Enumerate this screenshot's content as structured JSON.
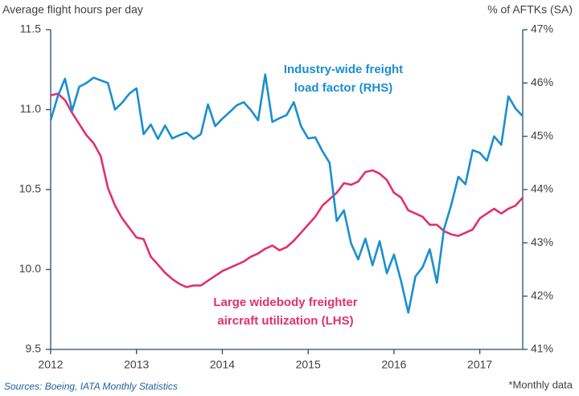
{
  "chart_data": {
    "type": "line",
    "ylabel": "Average flight hours per day",
    "y2label": "% of AFTKs (SA)",
    "source": "Sources: Boeing, IATA Monthly Statistics",
    "note": "*Monthly data",
    "annotations": [
      {
        "lines": [
          "Industry-wide freight",
          "load factor (RHS)"
        ],
        "color": "#1a8fd0"
      },
      {
        "lines": [
          "Large widebody freighter",
          "aircraft utilization (LHS)"
        ],
        "color": "#e0306f"
      }
    ],
    "x": [
      2012,
      2012.083,
      2012.167,
      2012.25,
      2012.333,
      2012.417,
      2012.5,
      2012.583,
      2012.667,
      2012.75,
      2012.833,
      2012.917,
      2013,
      2013.083,
      2013.167,
      2013.25,
      2013.333,
      2013.417,
      2013.5,
      2013.583,
      2013.667,
      2013.75,
      2013.833,
      2013.917,
      2014,
      2014.083,
      2014.167,
      2014.25,
      2014.333,
      2014.417,
      2014.5,
      2014.583,
      2014.667,
      2014.75,
      2014.833,
      2014.917,
      2015,
      2015.083,
      2015.167,
      2015.25,
      2015.333,
      2015.417,
      2015.5,
      2015.583,
      2015.667,
      2015.75,
      2015.833,
      2015.917,
      2016,
      2016.083,
      2016.167,
      2016.25,
      2016.333,
      2016.417,
      2016.5,
      2016.583,
      2016.667,
      2016.75,
      2016.833,
      2016.917,
      2017,
      2017.083,
      2017.167,
      2017.25,
      2017.333,
      2017.417,
      2017.5
    ],
    "series": [
      {
        "color": "#e0306f",
        "axis": "y",
        "values": [
          11.09,
          11.1,
          11.06,
          10.98,
          10.91,
          10.84,
          10.79,
          10.71,
          10.51,
          10.4,
          10.32,
          10.26,
          10.2,
          10.19,
          10.08,
          10.03,
          9.98,
          9.94,
          9.91,
          9.89,
          9.9,
          9.9,
          9.93,
          9.96,
          9.99,
          10.01,
          10.03,
          10.05,
          10.08,
          10.1,
          10.13,
          10.15,
          10.12,
          10.14,
          10.18,
          10.23,
          10.28,
          10.33,
          10.4,
          10.44,
          10.48,
          10.54,
          10.53,
          10.55,
          10.61,
          10.62,
          10.6,
          10.56,
          10.48,
          10.45,
          10.37,
          10.35,
          10.33,
          10.28,
          10.28,
          10.24,
          10.22,
          10.21,
          10.23,
          10.25,
          10.32,
          10.35,
          10.38,
          10.35,
          10.38,
          10.4,
          10.45
        ]
      },
      {
        "color": "#1a8fd0",
        "axis": "y2",
        "values": [
          45.3,
          45.75,
          46.08,
          45.48,
          45.93,
          46.0,
          46.1,
          46.05,
          46.0,
          45.5,
          45.63,
          45.8,
          45.9,
          45.04,
          45.22,
          44.95,
          45.2,
          44.96,
          45.02,
          45.07,
          44.95,
          45.04,
          45.6,
          45.19,
          45.33,
          45.45,
          45.58,
          45.64,
          45.49,
          45.3,
          46.16,
          45.27,
          45.34,
          45.4,
          45.64,
          45.19,
          44.96,
          44.98,
          44.72,
          44.5,
          43.41,
          43.61,
          42.99,
          42.69,
          43.08,
          42.58,
          43.03,
          42.43,
          42.78,
          42.28,
          41.69,
          42.37,
          42.54,
          42.88,
          42.25,
          43.26,
          43.71,
          44.24,
          44.1,
          44.74,
          44.69,
          44.54,
          45.0,
          44.84,
          45.75,
          45.52,
          45.38
        ]
      }
    ],
    "xlim": [
      2012,
      2017.5
    ],
    "xticks": [
      2012,
      2013,
      2014,
      2015,
      2016,
      2017
    ],
    "ylim": [
      9.5,
      11.5
    ],
    "yticks": [
      9.5,
      {
        "value": 10,
        "label": "10.0"
      },
      10.5,
      {
        "value": 11,
        "label": "11.0"
      },
      11.5
    ],
    "y2lim": [
      41,
      47
    ],
    "y2ticks": [
      {
        "value": 41,
        "label": "41%"
      },
      {
        "value": 42,
        "label": "42%"
      },
      {
        "value": 43,
        "label": "43%"
      },
      {
        "value": 44,
        "label": "44%"
      },
      {
        "value": 45,
        "label": "45%"
      },
      {
        "value": 46,
        "label": "46%"
      },
      {
        "value": 47,
        "label": "47%"
      }
    ]
  }
}
